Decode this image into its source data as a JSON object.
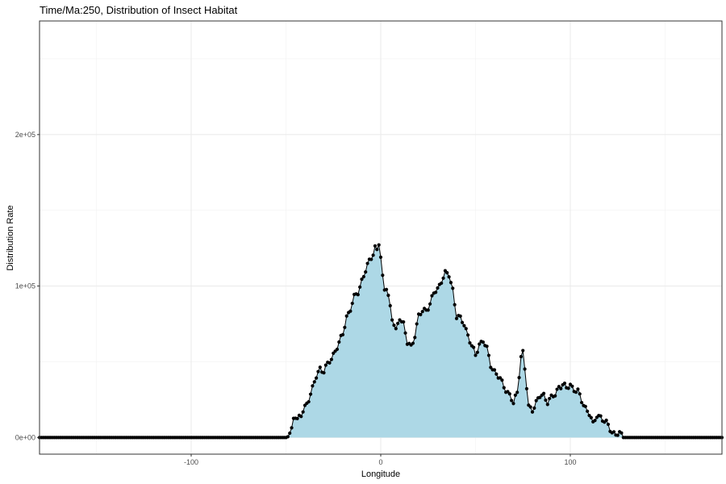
{
  "chart_data": {
    "type": "area",
    "title": "Time/Ma:250, Distribution of Insect Habitat",
    "xlabel": "Longitude",
    "ylabel": "Distribution Rate",
    "xlim": [
      -180,
      180
    ],
    "ylim": [
      -11000,
      275000
    ],
    "x_ticks": [
      {
        "value": -100,
        "label": "-100"
      },
      {
        "value": 0,
        "label": "0"
      },
      {
        "value": 100,
        "label": "100"
      }
    ],
    "y_ticks": [
      {
        "value": 0,
        "label": "0e+00"
      },
      {
        "value": 100000,
        "label": "1e+05"
      },
      {
        "value": 200000,
        "label": "2e+05"
      }
    ],
    "x_minor_grid": [
      -150,
      -50,
      50,
      150
    ],
    "y_minor_grid": [
      50000,
      150000,
      250000
    ],
    "grid": true,
    "fill_color": "#add8e6",
    "line_color": "#000000",
    "point_color": "#000000",
    "x_range_points": [
      -180,
      180
    ],
    "x_step": 1,
    "series": [
      {
        "x": [
          -180,
          -50,
          -48,
          -47,
          -46,
          -45,
          -44,
          -42,
          -40,
          -38,
          -36,
          -34,
          -32,
          -30,
          -28,
          -26,
          -24,
          -22,
          -20,
          -18,
          -16,
          -14,
          -12,
          -10,
          -8,
          -6,
          -4,
          -3,
          -2,
          -1,
          0,
          1,
          2,
          3,
          4,
          6,
          8,
          10,
          12,
          14,
          16,
          18,
          20,
          22,
          24,
          26,
          28,
          30,
          32,
          34,
          36,
          38,
          40,
          42,
          44,
          46,
          48,
          50,
          52,
          54,
          56,
          58,
          60,
          62,
          64,
          66,
          68,
          70,
          72,
          74,
          75,
          76,
          78,
          80,
          82,
          84,
          86,
          88,
          90,
          92,
          94,
          96,
          98,
          100,
          102,
          104,
          106,
          108,
          110,
          112,
          114,
          116,
          118,
          120,
          122,
          124,
          126,
          128,
          130,
          132,
          180
        ],
        "y": [
          0,
          0,
          2000,
          5000,
          14000,
          15000,
          12000,
          14000,
          20000,
          26000,
          32000,
          40000,
          46000,
          44000,
          48000,
          52000,
          58000,
          62000,
          68000,
          80000,
          85000,
          92000,
          96000,
          104000,
          110000,
          116000,
          122000,
          126000,
          124000,
          128000,
          118000,
          105000,
          98000,
          100000,
          94000,
          78000,
          70000,
          80000,
          75000,
          62000,
          60000,
          68000,
          80000,
          83000,
          85000,
          88000,
          95000,
          98000,
          104000,
          108000,
          107000,
          98000,
          80000,
          78000,
          75000,
          68000,
          60000,
          54000,
          62000,
          64000,
          58000,
          48000,
          44000,
          40000,
          36000,
          32000,
          28000,
          22000,
          30000,
          54000,
          56000,
          45000,
          20000,
          19000,
          23000,
          27000,
          28000,
          24000,
          26000,
          28000,
          34000,
          35000,
          32000,
          35000,
          32000,
          30000,
          24000,
          20000,
          16000,
          8000,
          15000,
          14000,
          10000,
          8000,
          4000,
          2000,
          2000,
          1000,
          0,
          0,
          0
        ]
      }
    ]
  }
}
